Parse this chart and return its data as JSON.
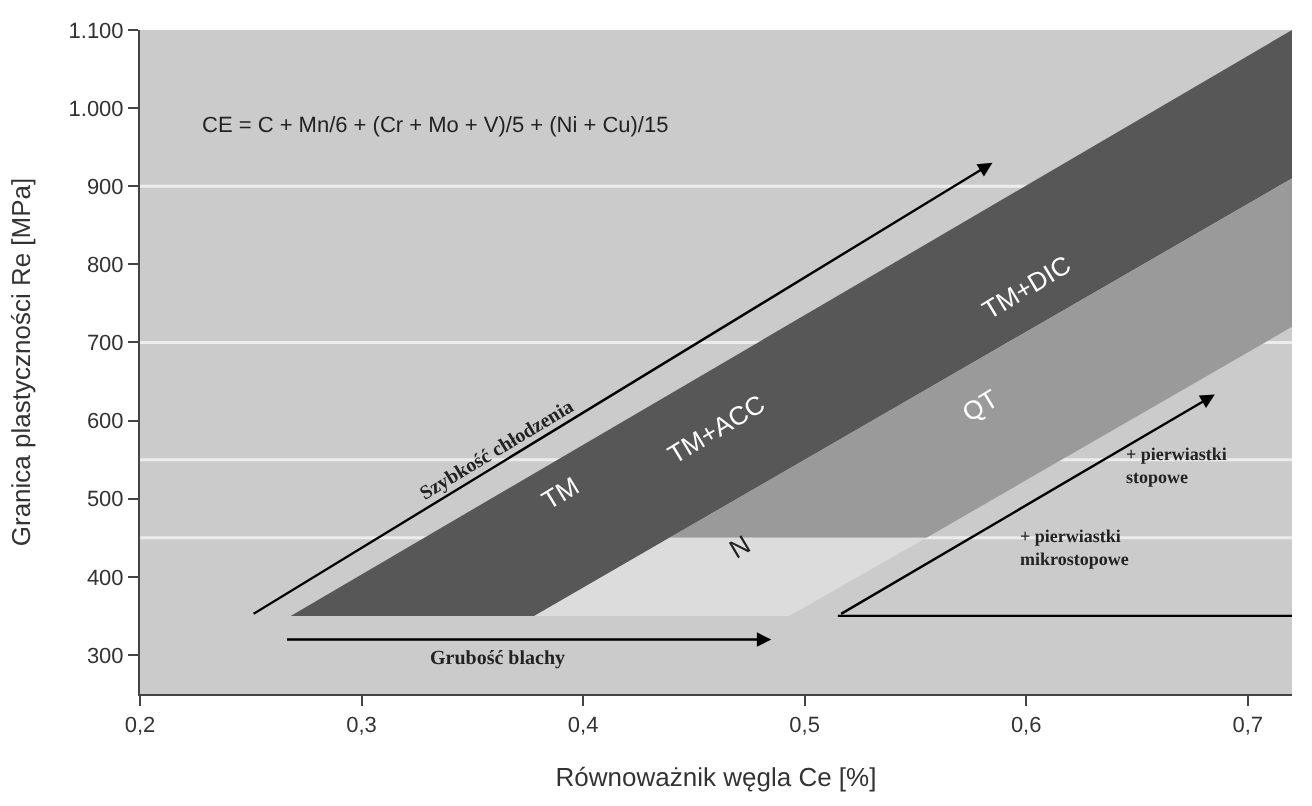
{
  "chart_data": {
    "type": "area",
    "xlabel": "Równoważnik węgla Ce [%]",
    "ylabel": "Granica plastyczności Re [MPa]",
    "xlim": [
      0.2,
      0.72
    ],
    "ylim": [
      250,
      1100
    ],
    "xticks": [
      {
        "value": 0.2,
        "label": "0,2"
      },
      {
        "value": 0.3,
        "label": "0,3"
      },
      {
        "value": 0.4,
        "label": "0,4"
      },
      {
        "value": 0.5,
        "label": "0,5"
      },
      {
        "value": 0.6,
        "label": "0,6"
      },
      {
        "value": 0.7,
        "label": "0,7"
      }
    ],
    "yticks": [
      300,
      400,
      500,
      600,
      700,
      800,
      900,
      {
        "value": 1000,
        "label": "1.000"
      },
      {
        "value": 1100,
        "label": "1.100"
      }
    ],
    "grid": false,
    "series": [
      {
        "color": "#575757",
        "x": [
          0.268,
          0.378,
          0.72,
          0.72
        ],
        "values": [
          350,
          350,
          910,
          1100
        ]
      },
      {
        "color": "#9a9a9a",
        "x": [
          0.439,
          0.555,
          0.72,
          0.72
        ],
        "values": [
          450,
          450,
          720,
          910
        ]
      },
      {
        "color": "#dcdcdc",
        "x": [
          0.378,
          0.493,
          0.555,
          0.439
        ],
        "values": [
          350,
          350,
          450,
          450
        ]
      },
      {
        "type": "line",
        "color": "#000000",
        "x": [
          0.515,
          0.72
        ],
        "values": [
          350,
          350
        ]
      }
    ],
    "ref_lines": [
      {
        "axis": "y",
        "value": 450,
        "color": "#ececec"
      },
      {
        "axis": "y",
        "value": 550,
        "color": "#ececec"
      },
      {
        "axis": "y",
        "value": 700,
        "color": "#ececec"
      },
      {
        "axis": "y",
        "value": 900,
        "color": "#ececec"
      }
    ],
    "annotations": [
      "CE = C + Mn/6 + (Cr + Mo + V)/5 + (Ni + Cu)/15",
      "TM",
      "TM+ACC",
      "TM+DIC",
      "QT",
      "N",
      "Szybkość chłodzenia",
      "Grubość blachy",
      "+ pierwiastki\nstopowe",
      "+ pierwiastki\nmikrostopowe"
    ]
  }
}
